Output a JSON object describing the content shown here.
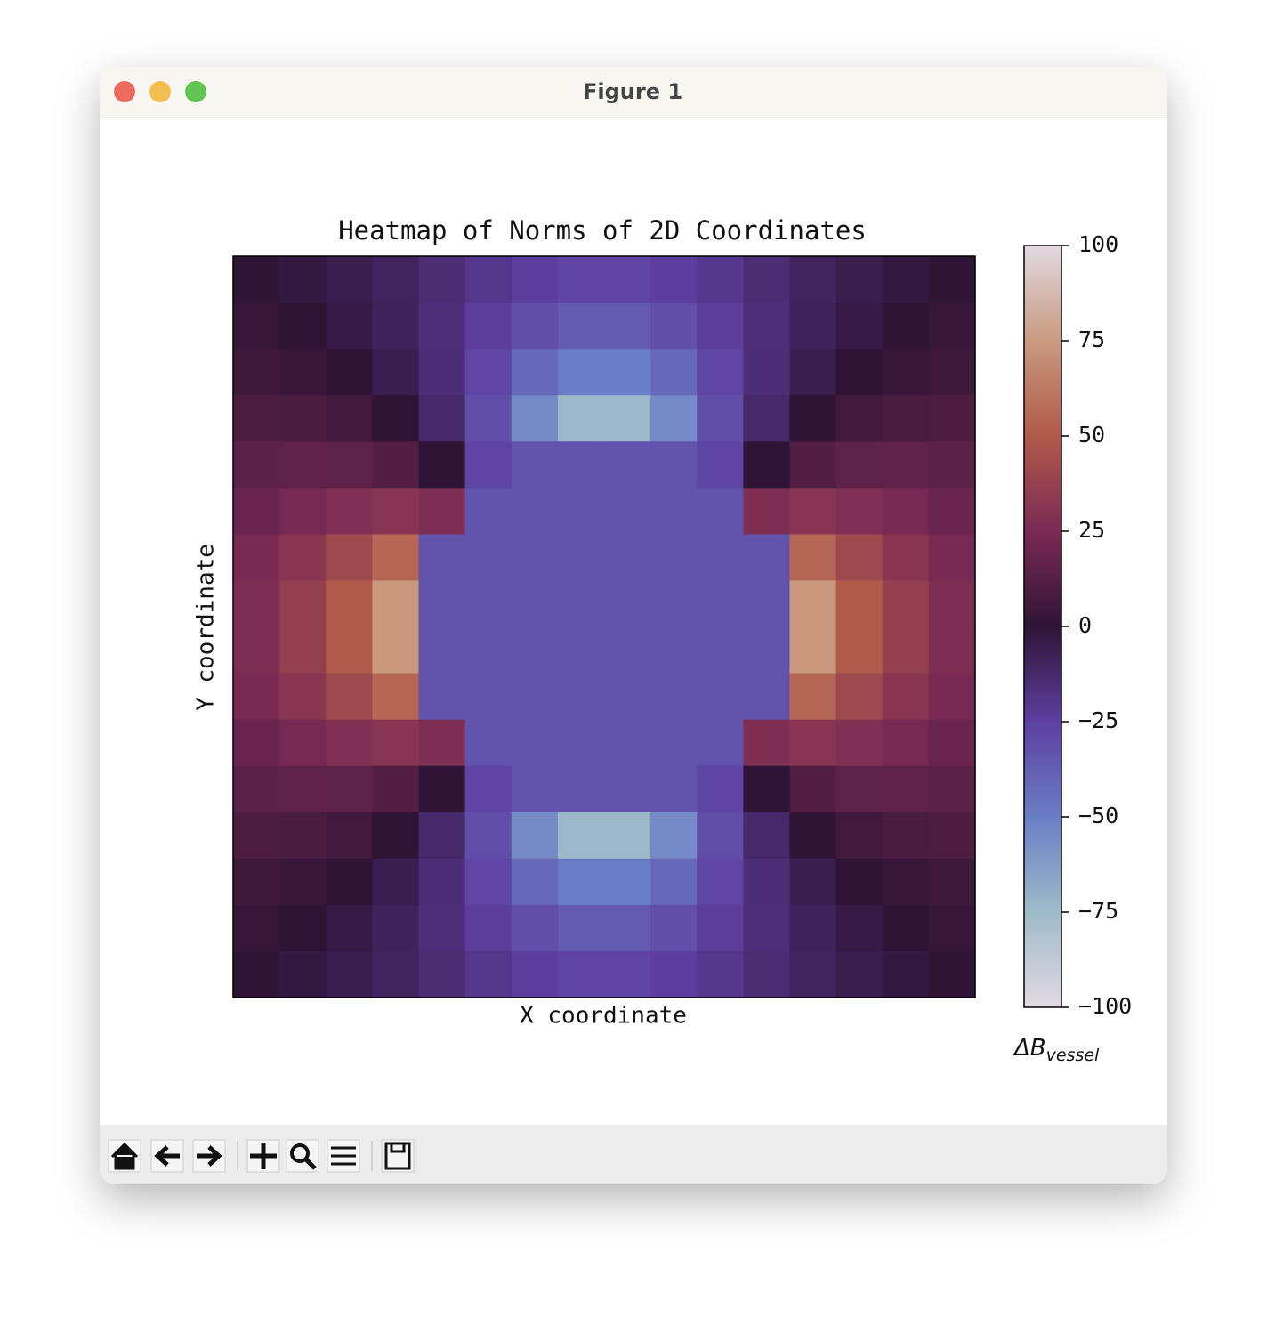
{
  "window_title": "Figure 1",
  "chart_data": {
    "type": "heatmap",
    "title": "Heatmap of Norms of 2D Coordinates",
    "xlabel": "X coordinate",
    "ylabel": "Y coordinate",
    "colorbar_label": {
      "main": "ΔB",
      "sub": "vessel"
    },
    "zlim": [
      -100,
      100
    ],
    "zticks": [
      {
        "value": -100,
        "label": "−100"
      },
      {
        "value": -75,
        "label": "−75"
      },
      {
        "value": -50,
        "label": "−50"
      },
      {
        "value": -25,
        "label": "−25"
      },
      0,
      25,
      50,
      75,
      100
    ],
    "colormap": [
      "#e2d9e2",
      "#9ebbc9",
      "#6a7ec5",
      "#5e3fa0",
      "#2f1436",
      "#7a2a54",
      "#b05a4a",
      "#c99a80",
      "#e2d9e2"
    ],
    "z": [
      [
        0,
        -2.2,
        -5.4,
        -9.5,
        -14.5,
        -19.8,
        -24.5,
        -27.2,
        -27.2,
        -24.5,
        -19.8,
        -14.5,
        -9.5,
        -5.4,
        -2.2,
        0
      ],
      [
        2.2,
        0,
        -3.5,
        -8.7,
        -15.7,
        -23.7,
        -31.3,
        -36,
        -36,
        -31.3,
        -23.7,
        -15.7,
        -8.7,
        -3.5,
        0,
        2.2
      ],
      [
        5.4,
        3.5,
        0,
        -6.1,
        -15.4,
        -27.9,
        -41.1,
        -50,
        -50,
        -41.1,
        -27.9,
        -15.4,
        -6.1,
        0,
        3.5,
        5.4
      ],
      [
        9.5,
        8.7,
        6.1,
        0,
        -11.7,
        -30.9,
        -55.1,
        -73.8,
        -73.8,
        -55.1,
        -30.9,
        -11.7,
        0,
        6.1,
        8.7,
        9.5
      ],
      [
        14.5,
        15.7,
        15.4,
        11.7,
        0,
        -27.2,
        -33,
        -33,
        -33,
        -33,
        -27.2,
        0,
        11.7,
        15.4,
        15.7,
        14.5
      ],
      [
        19.8,
        23.7,
        27.9,
        30.9,
        27.2,
        -33,
        -33,
        -33,
        -33,
        -33,
        -33,
        27.2,
        30.9,
        27.9,
        23.7,
        19.8
      ],
      [
        24.5,
        31.3,
        41.1,
        55.1,
        -33,
        -33,
        -33,
        -33,
        -33,
        -33,
        -33,
        -33,
        55.1,
        41.1,
        31.3,
        24.5
      ],
      [
        27.2,
        36,
        50,
        73.8,
        -33,
        -33,
        -33,
        -33,
        -33,
        -33,
        -33,
        -33,
        73.8,
        50,
        36,
        27.2
      ],
      [
        27.2,
        36,
        50,
        73.8,
        -33,
        -33,
        -33,
        -33,
        -33,
        -33,
        -33,
        -33,
        73.8,
        50,
        36,
        27.2
      ],
      [
        24.5,
        31.3,
        41.1,
        55.1,
        -33,
        -33,
        -33,
        -33,
        -33,
        -33,
        -33,
        -33,
        55.1,
        41.1,
        31.3,
        24.5
      ],
      [
        19.8,
        23.7,
        27.9,
        30.9,
        27.2,
        -33,
        -33,
        -33,
        -33,
        -33,
        -33,
        27.2,
        30.9,
        27.9,
        23.7,
        19.8
      ],
      [
        14.5,
        15.7,
        15.4,
        11.7,
        0,
        -27.2,
        -33,
        -33,
        -33,
        -33,
        -27.2,
        0,
        11.7,
        15.4,
        15.7,
        14.5
      ],
      [
        9.5,
        8.7,
        6.1,
        0,
        -11.7,
        -30.9,
        -55.1,
        -73.8,
        -73.8,
        -55.1,
        -30.9,
        -11.7,
        0,
        6.1,
        8.7,
        9.5
      ],
      [
        5.4,
        3.5,
        0,
        -6.1,
        -15.4,
        -27.9,
        -41.1,
        -50,
        -50,
        -41.1,
        -27.9,
        -15.4,
        -6.1,
        0,
        3.5,
        5.4
      ],
      [
        2.2,
        0,
        -3.5,
        -8.7,
        -15.7,
        -23.7,
        -31.3,
        -36,
        -36,
        -31.3,
        -23.7,
        -15.7,
        -8.7,
        -3.5,
        0,
        2.2
      ],
      [
        0,
        -2.2,
        -5.4,
        -9.5,
        -14.5,
        -19.8,
        -24.5,
        -27.2,
        -27.2,
        -24.5,
        -19.8,
        -14.5,
        -9.5,
        -5.4,
        -2.2,
        0
      ]
    ]
  }
}
